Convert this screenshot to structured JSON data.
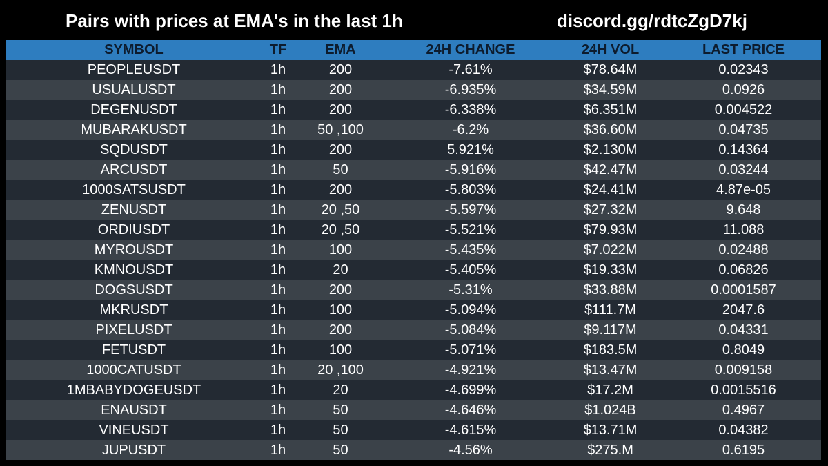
{
  "header": {
    "title": "Pairs with prices at EMA's in the last 1h",
    "discord": "discord.gg/rdtcZgD7kj"
  },
  "table": {
    "columns": [
      "SYMBOL",
      "TF",
      "EMA",
      "24H CHANGE",
      "24H VOL",
      "LAST PRICE"
    ],
    "rows": [
      [
        "PEOPLEUSDT",
        "1h",
        "200",
        "-7.61%",
        "$78.64M",
        "0.02343"
      ],
      [
        "USUALUSDT",
        "1h",
        "200",
        "-6.935%",
        "$34.59M",
        "0.0926"
      ],
      [
        "DEGENUSDT",
        "1h",
        "200",
        "-6.338%",
        "$6.351M",
        "0.004522"
      ],
      [
        "MUBARAKUSDT",
        "1h",
        "50 ,100",
        "-6.2%",
        "$36.60M",
        "0.04735"
      ],
      [
        "SQDUSDT",
        "1h",
        "200",
        "5.921%",
        "$2.130M",
        "0.14364"
      ],
      [
        "ARCUSDT",
        "1h",
        "50",
        "-5.916%",
        "$42.47M",
        "0.03244"
      ],
      [
        "1000SATSUSDT",
        "1h",
        "200",
        "-5.803%",
        "$24.41M",
        "4.87e-05"
      ],
      [
        "ZENUSDT",
        "1h",
        "20 ,50",
        "-5.597%",
        "$27.32M",
        "9.648"
      ],
      [
        "ORDIUSDT",
        "1h",
        "20 ,50",
        "-5.521%",
        "$79.93M",
        "11.088"
      ],
      [
        "MYROUSDT",
        "1h",
        "100",
        "-5.435%",
        "$7.022M",
        "0.02488"
      ],
      [
        "KMNOUSDT",
        "1h",
        "20",
        "-5.405%",
        "$19.33M",
        "0.06826"
      ],
      [
        "DOGSUSDT",
        "1h",
        "200",
        "-5.31%",
        "$33.88M",
        "0.0001587"
      ],
      [
        "MKRUSDT",
        "1h",
        "100",
        "-5.094%",
        "$111.7M",
        "2047.6"
      ],
      [
        "PIXELUSDT",
        "1h",
        "200",
        "-5.084%",
        "$9.117M",
        "0.04331"
      ],
      [
        "FETUSDT",
        "1h",
        "100",
        "-5.071%",
        "$183.5M",
        "0.8049"
      ],
      [
        "1000CATUSDT",
        "1h",
        "20 ,100",
        "-4.921%",
        "$13.47M",
        "0.009158"
      ],
      [
        "1MBABYDOGEUSDT",
        "1h",
        "20",
        "-4.699%",
        "$17.2M",
        "0.0015516"
      ],
      [
        "ENAUSDT",
        "1h",
        "50",
        "-4.646%",
        "$1.024B",
        "0.4967"
      ],
      [
        "VINEUSDT",
        "1h",
        "50",
        "-4.615%",
        "$13.71M",
        "0.04382"
      ],
      [
        "JUPUSDT",
        "1h",
        "50",
        "-4.56%",
        "$275.M",
        "0.6195"
      ]
    ]
  },
  "colors": {
    "background": "#000000",
    "header_row": "#2e7dbf",
    "row_dark": "#232a33",
    "row_light": "#3b4249",
    "text": "#ffffff"
  }
}
